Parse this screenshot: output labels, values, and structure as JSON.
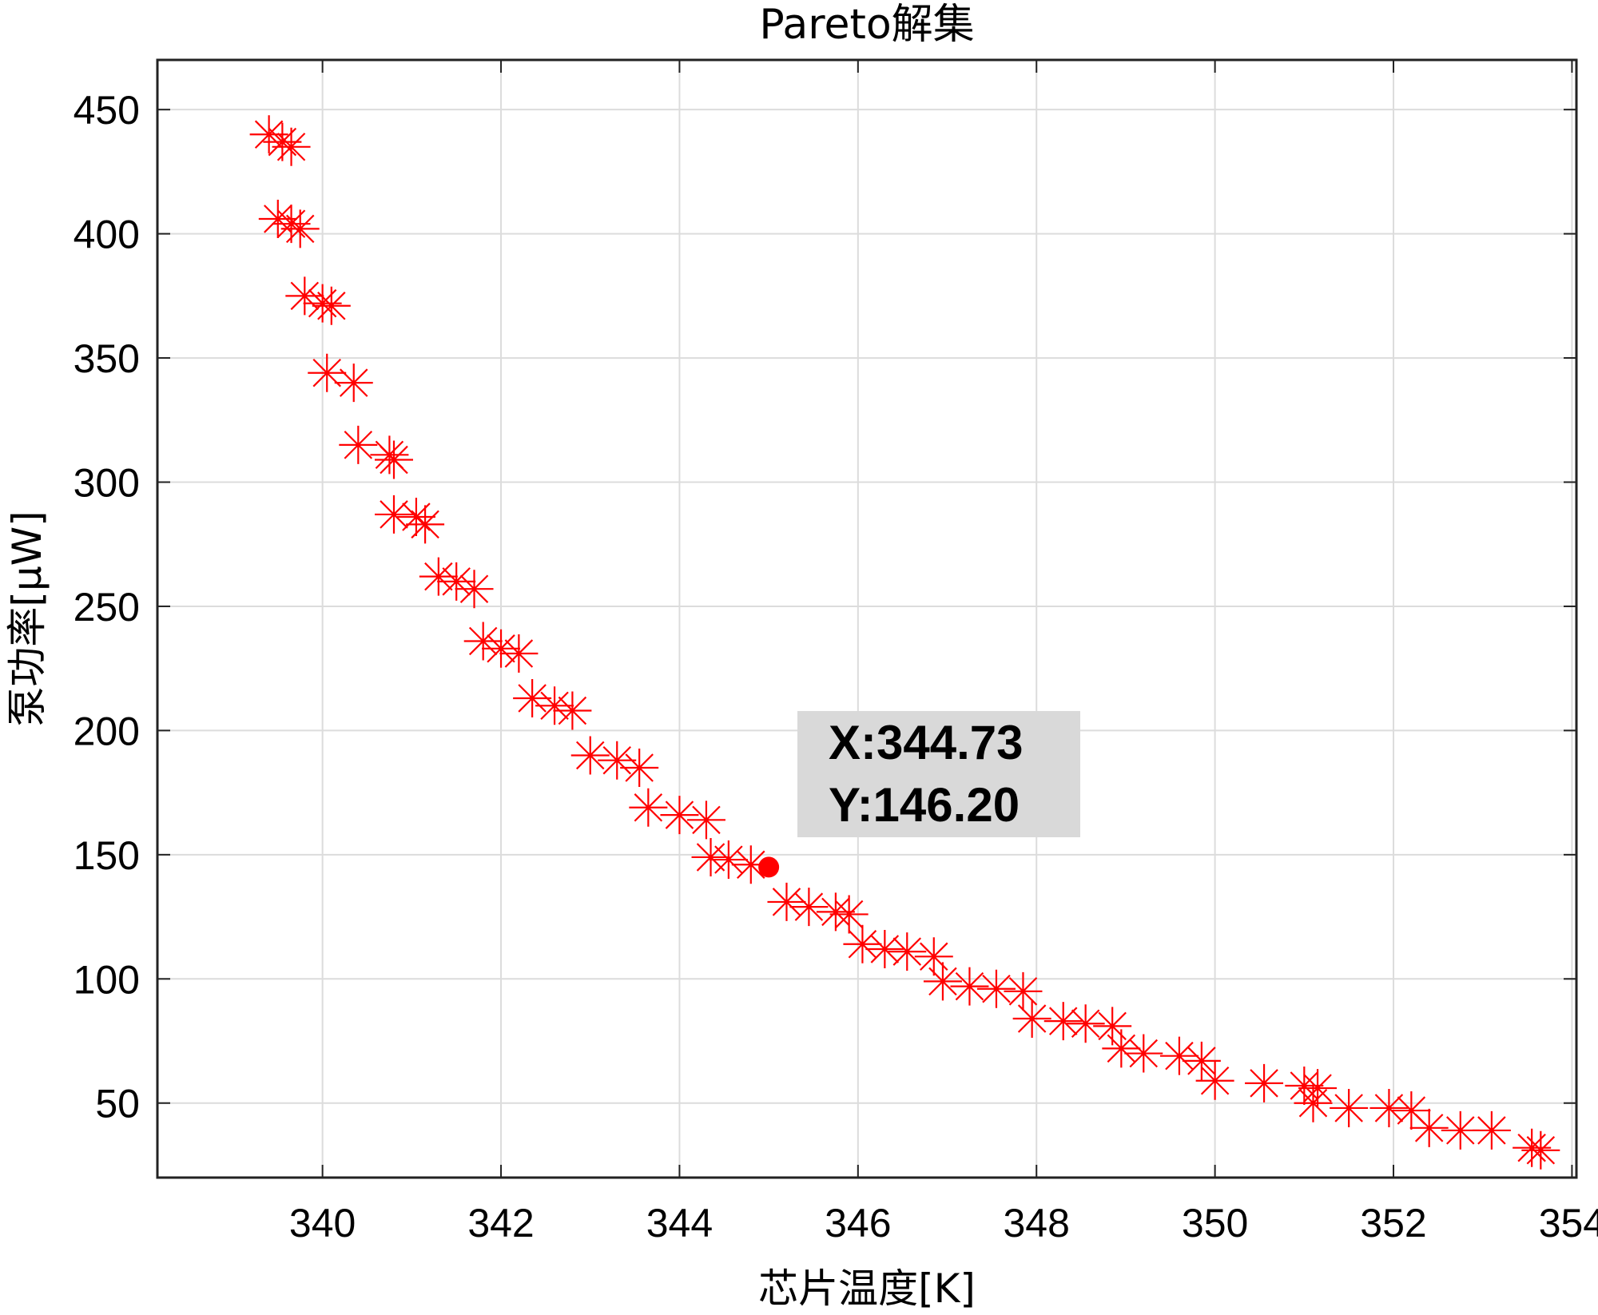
{
  "chart_data": {
    "type": "scatter",
    "title": "Pareto解集",
    "xlabel": "芯片温度[K]",
    "ylabel": "泵功率[μW]",
    "xlim": [
      338.15,
      354.05
    ],
    "ylim": [
      20,
      470
    ],
    "xticks": [
      340,
      342,
      344,
      346,
      348,
      350,
      352,
      354
    ],
    "yticks": [
      50,
      100,
      150,
      200,
      250,
      300,
      350,
      400,
      450
    ],
    "grid": true,
    "marker": "asterisk",
    "color": "#ff0000",
    "series": [
      {
        "points": [
          [
            339.4,
            440
          ],
          [
            339.55,
            437
          ],
          [
            339.65,
            435
          ],
          [
            339.5,
            406
          ],
          [
            339.65,
            404
          ],
          [
            339.75,
            402
          ],
          [
            339.8,
            375
          ],
          [
            340.0,
            372
          ],
          [
            340.1,
            371
          ],
          [
            340.05,
            344
          ],
          [
            340.35,
            340
          ],
          [
            340.4,
            315
          ],
          [
            340.75,
            311
          ],
          [
            340.8,
            309
          ],
          [
            340.8,
            287
          ],
          [
            341.05,
            286
          ],
          [
            341.15,
            283
          ],
          [
            341.3,
            262
          ],
          [
            341.5,
            260
          ],
          [
            341.7,
            257
          ],
          [
            341.8,
            236
          ],
          [
            342.0,
            233
          ],
          [
            342.2,
            231
          ],
          [
            342.35,
            213
          ],
          [
            342.6,
            210
          ],
          [
            342.8,
            208
          ],
          [
            343.0,
            190
          ],
          [
            343.3,
            188
          ],
          [
            343.55,
            185
          ],
          [
            343.65,
            169
          ],
          [
            344.0,
            166
          ],
          [
            344.3,
            164
          ],
          [
            344.35,
            149
          ],
          [
            344.55,
            148
          ],
          [
            344.8,
            146
          ],
          [
            345.2,
            131
          ],
          [
            345.45,
            129
          ],
          [
            345.75,
            127
          ],
          [
            345.9,
            126
          ],
          [
            346.05,
            114
          ],
          [
            346.3,
            112
          ],
          [
            346.55,
            111
          ],
          [
            346.85,
            109
          ],
          [
            346.95,
            99
          ],
          [
            347.25,
            97
          ],
          [
            347.55,
            96
          ],
          [
            347.85,
            95
          ],
          [
            347.95,
            84
          ],
          [
            348.3,
            83
          ],
          [
            348.55,
            82
          ],
          [
            348.85,
            81
          ],
          [
            348.95,
            72
          ],
          [
            349.2,
            70
          ],
          [
            349.6,
            69
          ],
          [
            349.85,
            67
          ],
          [
            350.0,
            59
          ],
          [
            350.55,
            58
          ],
          [
            351.0,
            57
          ],
          [
            351.15,
            56
          ],
          [
            351.1,
            50
          ],
          [
            351.5,
            48
          ],
          [
            351.95,
            48
          ],
          [
            352.2,
            47
          ],
          [
            352.4,
            40
          ],
          [
            352.75,
            39
          ],
          [
            353.1,
            39
          ],
          [
            353.55,
            32
          ],
          [
            353.65,
            31
          ]
        ]
      }
    ],
    "datatip": {
      "x": 344.73,
      "y": 146.2,
      "x_label": "X:344.73",
      "y_label": "Y:146.20"
    }
  }
}
